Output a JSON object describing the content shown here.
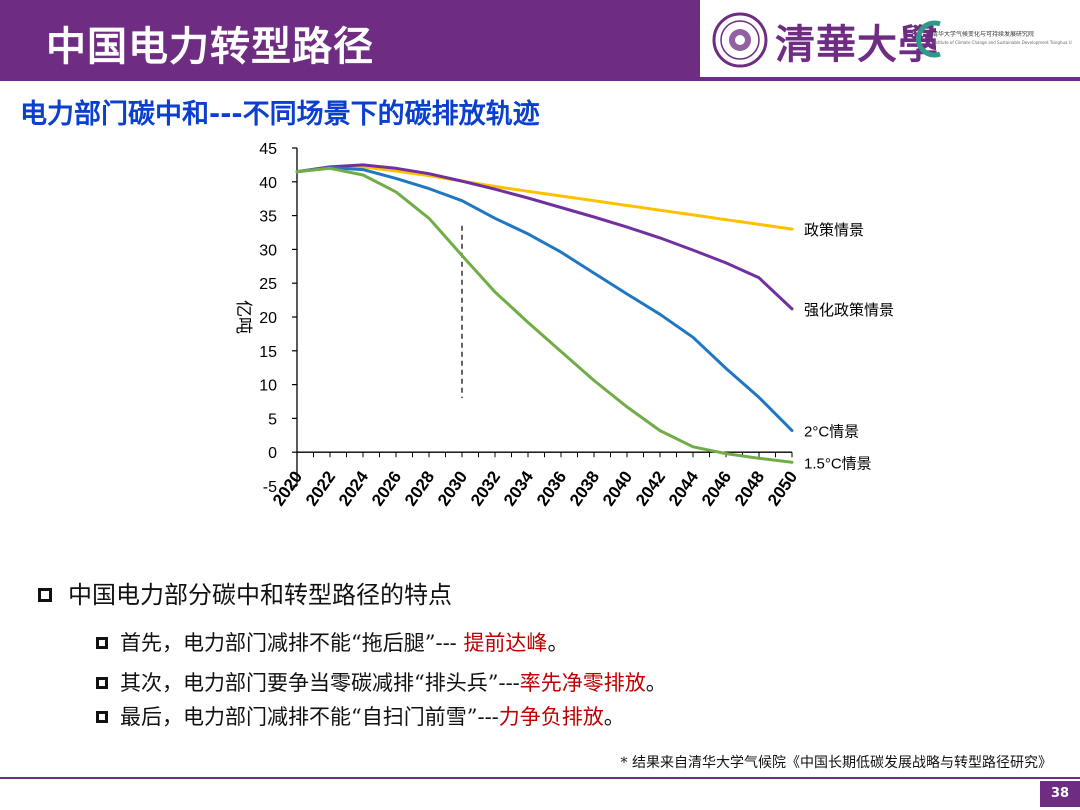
{
  "header": {
    "title": "中国电力转型路径",
    "university": "清華大學",
    "institute_name": "清华大学气候变化与可持续发展研究院",
    "institute_sub": "Institute of Climate Change and Sustainable Development Tsinghua University",
    "brand_color": "#6e2c82"
  },
  "subtitle": "电力部门碳中和---不同场景下的碳排放轨迹",
  "chart_data": {
    "type": "line",
    "ylabel": "亿吨",
    "ylim": [
      -5,
      45
    ],
    "yticks": [
      "45",
      "40",
      "35",
      "30",
      "25",
      "20",
      "15",
      "10",
      "5",
      "0",
      "-5"
    ],
    "categories": [
      "2020",
      "2022",
      "2024",
      "2026",
      "2028",
      "2030",
      "2032",
      "2034",
      "2036",
      "2038",
      "2040",
      "2042",
      "2044",
      "2046",
      "2048",
      "2050"
    ],
    "x": [
      2020,
      2022,
      2024,
      2026,
      2028,
      2030,
      2032,
      2034,
      2036,
      2038,
      2040,
      2042,
      2044,
      2046,
      2048,
      2050
    ],
    "divider_year": 2030,
    "series": [
      {
        "name": "政策情景",
        "color": "#ffc000",
        "values": [
          41.5,
          42.2,
          42.2,
          41.6,
          40.9,
          40.1,
          39.3,
          38.6,
          37.9,
          37.2,
          36.5,
          35.8,
          35.1,
          34.4,
          33.7,
          33.0
        ]
      },
      {
        "name": "强化政策情景",
        "color": "#7030a0",
        "values": [
          41.5,
          42.2,
          42.5,
          42.0,
          41.2,
          40.1,
          38.9,
          37.6,
          36.2,
          34.8,
          33.3,
          31.7,
          29.9,
          28.0,
          25.8,
          21.2
        ]
      },
      {
        "name": "2°C情景",
        "color": "#1f77c4",
        "values": [
          41.5,
          42.1,
          41.8,
          40.5,
          39.0,
          37.2,
          34.6,
          32.3,
          29.6,
          26.5,
          23.4,
          20.4,
          17.0,
          12.4,
          8.1,
          3.2
        ]
      },
      {
        "name": "1.5°C情景",
        "color": "#70ad47",
        "values": [
          41.5,
          42.0,
          41.0,
          38.5,
          34.6,
          29.1,
          23.7,
          19.2,
          14.9,
          10.6,
          6.7,
          3.2,
          0.8,
          -0.2,
          -0.9,
          -1.5
        ]
      }
    ]
  },
  "bullets": {
    "main": "中国电力部分碳中和转型路径的特点",
    "items": [
      {
        "prefix": "首先，电力部门减排不能“拖后腿”--- ",
        "emphasis": "提前达峰",
        "suffix": "。"
      },
      {
        "prefix": "其次，电力部门要争当零碳减排“排头兵”---",
        "emphasis": "率先净零排放",
        "suffix": "。"
      },
      {
        "prefix": "最后，电力部门减排不能“自扫门前雪”---",
        "emphasis": "力争负排放",
        "suffix": "。"
      }
    ]
  },
  "footnote": "* 结果来自清华大学气候院《中国长期低碳发展战略与转型路径研究》",
  "page_number": "38"
}
